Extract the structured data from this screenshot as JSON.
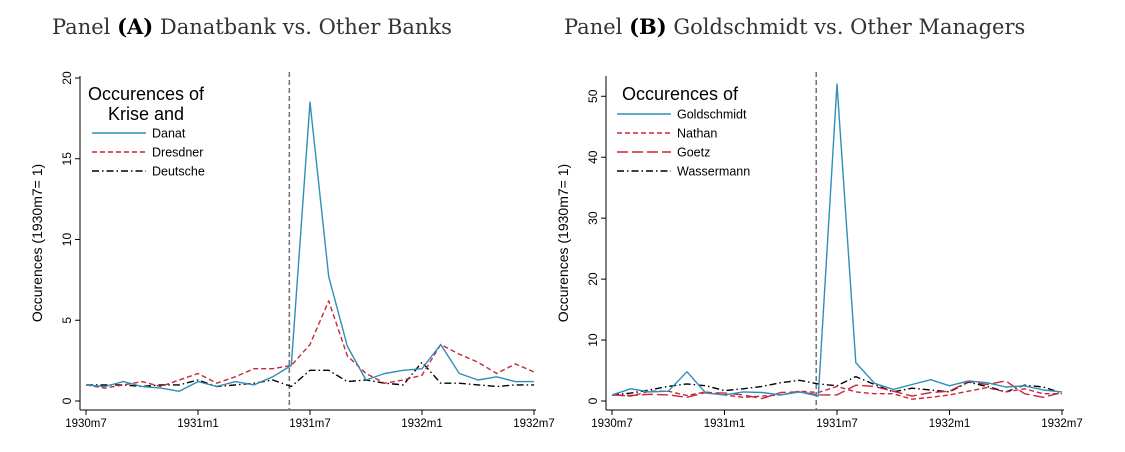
{
  "panels": [
    {
      "prefix": "Panel ",
      "label": "(A)",
      "suffix": " Danatbank vs. Other Banks"
    },
    {
      "prefix": "Panel ",
      "label": "(B)",
      "suffix": " Goldschmidt vs. Other Managers"
    }
  ],
  "chart_data": [
    {
      "type": "line",
      "title": "Panel (A) Danatbank vs. Other Banks",
      "ylabel": "Occurences (1930m7= 1)",
      "xlabel": "",
      "x": [
        "1930m7",
        "1930m8",
        "1930m9",
        "1930m10",
        "1930m11",
        "1930m12",
        "1931m1",
        "1931m2",
        "1931m3",
        "1931m4",
        "1931m5",
        "1931m6",
        "1931m7",
        "1931m8",
        "1931m9",
        "1931m10",
        "1931m11",
        "1931m12",
        "1932m1",
        "1932m2",
        "1932m3",
        "1932m4",
        "1932m5",
        "1932m6",
        "1932m7"
      ],
      "xticks": [
        "1930m7",
        "1931m1",
        "1931m7",
        "1932m1",
        "1932m7"
      ],
      "yticks": [
        0,
        5,
        10,
        15,
        20
      ],
      "ylim": [
        0,
        20
      ],
      "vline": "1931m6",
      "grid": false,
      "legend": {
        "title": [
          "Occurences of",
          "Krise and"
        ],
        "position": "top-left"
      },
      "series": [
        {
          "name": "Danat",
          "color": "#2f8fb8",
          "dash": "solid",
          "values": [
            1.0,
            0.9,
            1.2,
            0.9,
            0.8,
            0.6,
            1.2,
            0.9,
            1.2,
            1.0,
            1.5,
            2.2,
            18.5,
            7.7,
            3.4,
            1.3,
            1.7,
            1.9,
            2.0,
            3.5,
            1.7,
            1.3,
            1.5,
            1.2,
            1.2
          ]
        },
        {
          "name": "Dresdner",
          "color": "#c8273a",
          "dash": "short",
          "values": [
            1.0,
            0.8,
            1.0,
            1.2,
            0.9,
            1.3,
            1.7,
            1.1,
            1.5,
            2.0,
            2.0,
            2.2,
            3.5,
            6.2,
            2.8,
            1.7,
            1.1,
            1.3,
            1.6,
            3.5,
            2.9,
            2.4,
            1.7,
            2.3,
            1.8
          ]
        },
        {
          "name": "Deutsche",
          "color": "#000000",
          "dash": "dashdot",
          "values": [
            1.0,
            1.0,
            1.0,
            0.9,
            1.0,
            1.0,
            1.3,
            0.9,
            1.0,
            1.1,
            1.3,
            0.9,
            1.9,
            1.9,
            1.2,
            1.3,
            1.1,
            1.0,
            2.4,
            1.1,
            1.1,
            1.0,
            0.9,
            1.0,
            1.0
          ]
        }
      ]
    },
    {
      "type": "line",
      "title": "Panel (B) Goldschmidt vs. Other Managers",
      "ylabel": "Occurences (1930m7= 1)",
      "xlabel": "",
      "x": [
        "1930m7",
        "1930m8",
        "1930m9",
        "1930m10",
        "1930m11",
        "1930m12",
        "1931m1",
        "1931m2",
        "1931m3",
        "1931m4",
        "1931m5",
        "1931m6",
        "1931m7",
        "1931m8",
        "1931m9",
        "1931m10",
        "1931m11",
        "1931m12",
        "1932m1",
        "1932m2",
        "1932m3",
        "1932m4",
        "1932m5",
        "1932m6",
        "1932m7"
      ],
      "xticks": [
        "1930m7",
        "1931m1",
        "1931m7",
        "1932m1",
        "1932m7"
      ],
      "yticks": [
        0,
        10,
        20,
        30,
        40,
        50
      ],
      "ylim": [
        0,
        53
      ],
      "vline": "1931m6",
      "grid": false,
      "legend": {
        "title": [
          "Occurences of"
        ],
        "position": "top-left"
      },
      "series": [
        {
          "name": "Goldschmidt",
          "color": "#2f8fb8",
          "dash": "solid",
          "values": [
            1.0,
            2.0,
            1.5,
            1.6,
            4.8,
            1.3,
            1.0,
            1.5,
            1.4,
            1.0,
            1.5,
            0.8,
            52.0,
            6.3,
            2.9,
            1.9,
            2.7,
            3.5,
            2.5,
            3.3,
            3.0,
            2.3,
            2.5,
            1.8,
            1.5
          ]
        },
        {
          "name": "Nathan",
          "color": "#c8273a",
          "dash": "short",
          "values": [
            1.0,
            0.8,
            1.6,
            1.6,
            0.9,
            1.5,
            1.0,
            0.6,
            0.8,
            1.0,
            1.6,
            1.4,
            2.4,
            1.5,
            1.2,
            1.2,
            0.3,
            0.6,
            1.0,
            1.6,
            2.2,
            1.5,
            2.0,
            1.2,
            1.2
          ]
        },
        {
          "name": "Goetz",
          "color": "#c8273a",
          "dash": "long",
          "values": [
            1.0,
            0.9,
            1.1,
            1.0,
            0.6,
            1.4,
            1.3,
            1.0,
            0.4,
            1.4,
            1.5,
            1.0,
            1.0,
            2.6,
            2.4,
            1.6,
            0.8,
            1.4,
            1.6,
            3.2,
            2.7,
            3.3,
            1.2,
            0.6,
            1.4
          ]
        },
        {
          "name": "Wassermann",
          "color": "#000000",
          "dash": "dashdot",
          "values": [
            1.0,
            1.3,
            1.8,
            2.4,
            2.8,
            2.5,
            1.7,
            2.0,
            2.4,
            3.0,
            3.4,
            2.8,
            2.5,
            4.0,
            2.7,
            1.5,
            2.1,
            1.8,
            1.5,
            3.1,
            2.4,
            1.5,
            2.6,
            2.3,
            1.3
          ]
        }
      ]
    }
  ]
}
